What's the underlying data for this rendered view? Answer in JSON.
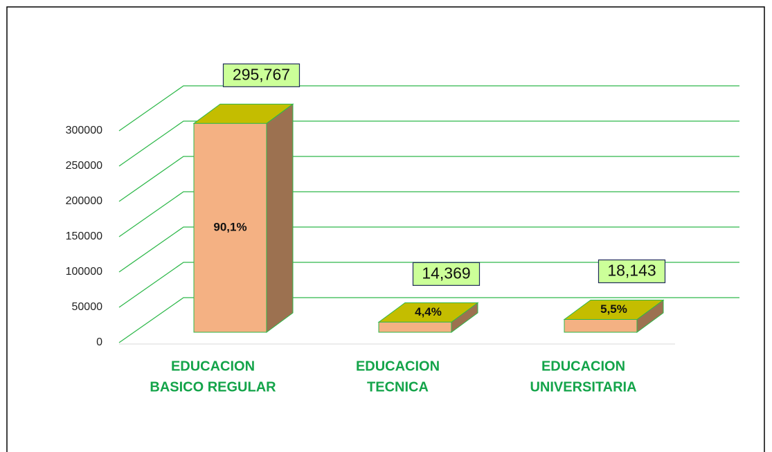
{
  "chart_data": {
    "type": "bar3d",
    "categories": [
      [
        "EDUCACION",
        "BASICO REGULAR"
      ],
      [
        "EDUCACION",
        "TECNICA"
      ],
      [
        "EDUCACION",
        "UNIVERSITARIA"
      ]
    ],
    "values": [
      295767,
      14369,
      18143
    ],
    "value_labels": [
      "295,767",
      "14,369",
      "18,143"
    ],
    "percent_labels": [
      "90,1%",
      "4,4%",
      "5,5%"
    ],
    "ylim": [
      0,
      300000
    ],
    "yticks": [
      0,
      50000,
      100000,
      150000,
      200000,
      250000,
      300000
    ],
    "grid": true,
    "colors": {
      "front": "#f4b183",
      "side": "#9c7150",
      "top": "#c4bd00",
      "grid": "#2eb84a",
      "category": "#14a44a"
    }
  }
}
